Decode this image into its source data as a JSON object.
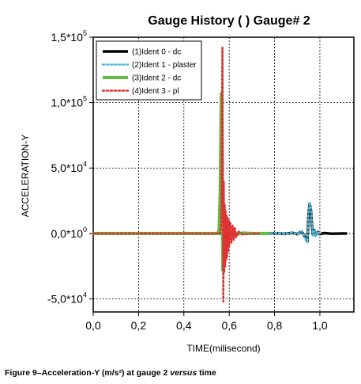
{
  "chart_data": {
    "type": "line",
    "title": "Gauge History ( ) Gauge#  2",
    "xlabel": "TIME(milisecond)",
    "ylabel": "ACCELERATION-Y",
    "xlim": [
      0.0,
      1.15
    ],
    "ylim": [
      -60000,
      150000
    ],
    "xticks": [
      0.0,
      0.2,
      0.4,
      0.6,
      0.8,
      1.0
    ],
    "xtick_labels": [
      "0,0",
      "0,2",
      "0,4",
      "0,6",
      "0,8",
      "1,0"
    ],
    "yticks": [
      -50000,
      0,
      50000,
      100000,
      150000
    ],
    "ytick_labels": [
      {
        "mantissa": "-5,0*10",
        "exp": "4"
      },
      {
        "mantissa": "0,0*10",
        "exp": "0"
      },
      {
        "mantissa": "5,0*10",
        "exp": "4"
      },
      {
        "mantissa": "1,0*10",
        "exp": "5"
      },
      {
        "mantissa": "1,5*10",
        "exp": "5"
      }
    ],
    "grid": true,
    "legend_position": "top-left",
    "series": [
      {
        "name": "(1)Ident 0 - dc",
        "color": "#000000",
        "style": "solid",
        "x": [
          0.0,
          0.78,
          0.8,
          0.84,
          0.88,
          0.9,
          0.92,
          0.935,
          0.945,
          0.95,
          0.955,
          0.96,
          0.965,
          0.97,
          0.975,
          0.98,
          0.99,
          1.0,
          1.02,
          1.05,
          1.1,
          1.12
        ],
        "y": [
          0,
          0,
          300,
          -300,
          400,
          -500,
          1500,
          -3000,
          -6000,
          15000,
          23000,
          18000,
          6000,
          -1000,
          2500,
          -1500,
          1000,
          -500,
          300,
          -200,
          0,
          0
        ]
      },
      {
        "name": "(2)Ident 1 - plaster",
        "color": "#55bbdd",
        "style": "dotted",
        "x": [
          0.0,
          0.78,
          0.8,
          0.84,
          0.88,
          0.9,
          0.92,
          0.935,
          0.945,
          0.95,
          0.955,
          0.96,
          0.965,
          0.97,
          0.975,
          0.98,
          0.99,
          1.0
        ],
        "y": [
          0,
          0,
          500,
          -500,
          600,
          -700,
          1800,
          -3500,
          -7000,
          16000,
          24000,
          19000,
          7000,
          -1500,
          3000,
          -2000,
          1200,
          0
        ]
      },
      {
        "name": "(3)Ident 2 - dc",
        "color": "#66bb44",
        "style": "solid",
        "x": [
          0.0,
          0.55,
          0.555,
          0.56,
          0.565,
          0.568,
          0.572,
          0.575,
          0.578,
          0.582,
          0.586,
          0.59,
          0.595,
          0.6,
          0.61,
          0.62,
          0.64,
          0.66,
          0.7,
          0.78
        ],
        "y": [
          0,
          0,
          3000,
          30000,
          107000,
          80000,
          -28000,
          20000,
          -15000,
          9000,
          -7000,
          5000,
          -3500,
          2500,
          -1500,
          1000,
          -600,
          400,
          0,
          0
        ]
      },
      {
        "name": "(4)Ident 3 - pl",
        "color": "#dd3333",
        "style": "dotted",
        "x": [
          0.0,
          0.56,
          0.565,
          0.57,
          0.572,
          0.574,
          0.576,
          0.578,
          0.58,
          0.582,
          0.584,
          0.586,
          0.588,
          0.59,
          0.592,
          0.595,
          0.598,
          0.6,
          0.605,
          0.61,
          0.615,
          0.62,
          0.625,
          0.63,
          0.64,
          0.66,
          0.7,
          0.74
        ],
        "y": [
          0,
          0,
          8000,
          142000,
          60000,
          -52000,
          40000,
          -30000,
          22000,
          -25000,
          18000,
          -20000,
          14000,
          -18000,
          12000,
          -14000,
          10000,
          -10000,
          8000,
          -7000,
          6000,
          -5000,
          4000,
          -3000,
          1500,
          -800,
          0,
          0
        ]
      }
    ]
  },
  "caption": {
    "prefix": "Figure 9–Acceleration-Y (m/s²) at gauge 2 ",
    "emph": "versus",
    "suffix": " time"
  }
}
